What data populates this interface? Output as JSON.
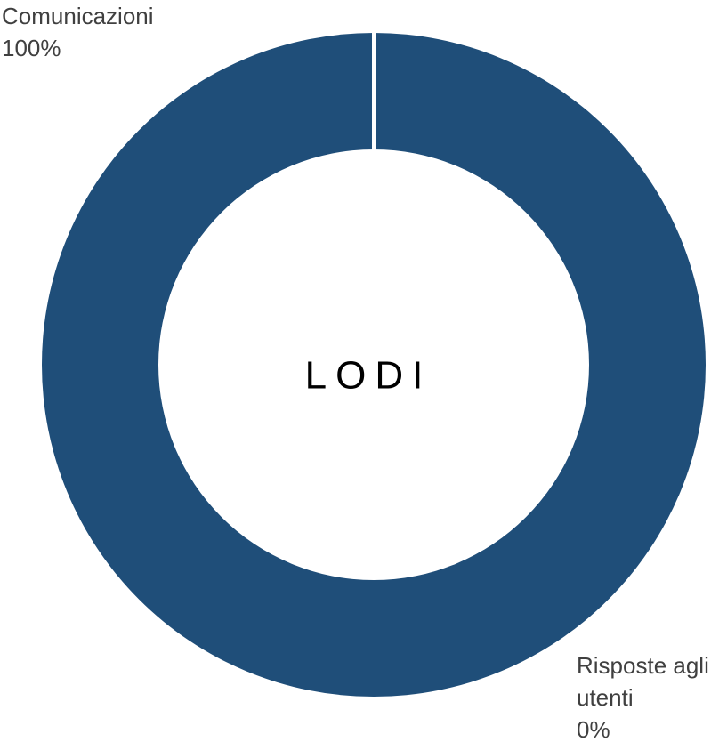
{
  "chart_data": {
    "type": "donut",
    "title": "LODI",
    "categories": [
      "Comunicazioni",
      "Risposte agli utenti"
    ],
    "values": [
      100,
      0
    ],
    "value_labels": [
      "100%",
      "0%"
    ],
    "color": "#1f4e79"
  }
}
